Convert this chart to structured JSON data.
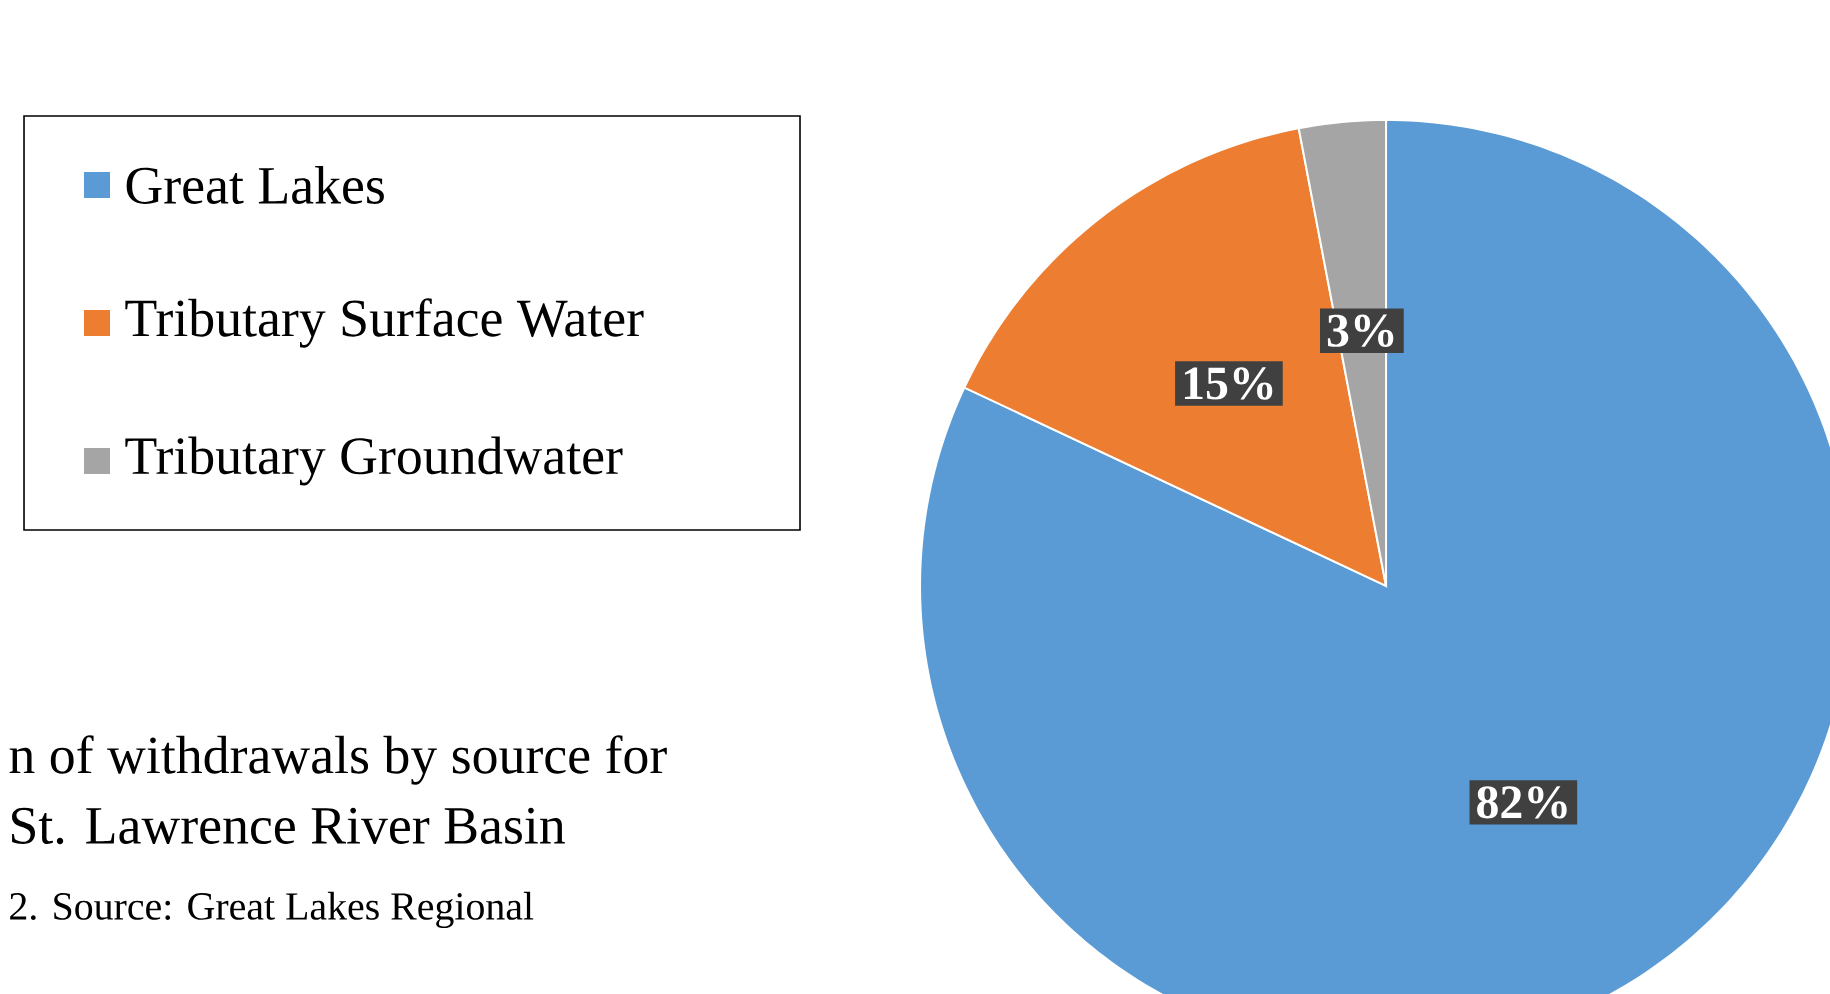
{
  "chart_data": {
    "type": "pie",
    "categories": [
      "Great Lakes",
      "Tributary Surface Water",
      "Tributary Groundwater"
    ],
    "values": [
      82,
      15,
      3
    ],
    "colors": [
      "#5b9bd5",
      "#ed7d31",
      "#a5a5a5"
    ],
    "value_labels": [
      "82%",
      "15%",
      "3%"
    ],
    "legend": "left",
    "annotations": [
      "n of withdrawals by source for",
      "St. Lawrence River Basin",
      "2. Source: Great Lakes Regional"
    ]
  }
}
